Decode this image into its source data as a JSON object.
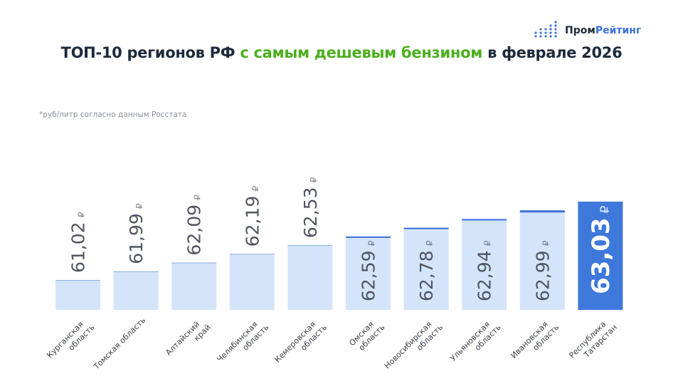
{
  "logo": {
    "part1": "Пром",
    "part2": "Рейтинг"
  },
  "title": {
    "part1": "ТОП-10 регионов РФ ",
    "highlight": "с самым дешевым бензином",
    "part2": " в феврале 2026"
  },
  "subtitle": "*руб/литр согласно данным Росстата",
  "colors": {
    "bar": "#d4e4fb",
    "bar_top_line": "#3b6fd9",
    "highlight_bar": "#3f78db",
    "highlight_text": "#4caf1e",
    "label": "#4f5561"
  },
  "chart_data": {
    "type": "bar",
    "title": "ТОП-10 регионов РФ с самым дешевым бензином в феврале 2026",
    "unit": "₽",
    "categories": [
      [
        "Курганская",
        "область"
      ],
      [
        "Томская область"
      ],
      [
        "Алтайский",
        "край"
      ],
      [
        "Челябинская",
        "область"
      ],
      [
        "Кемеровская",
        "область"
      ],
      [
        "Омская",
        "область"
      ],
      [
        "Новосибирская",
        "область"
      ],
      [
        "Ульяновская",
        "область"
      ],
      [
        "Ивановская",
        "область"
      ],
      [
        "Республика",
        "Татарстан"
      ]
    ],
    "values": [
      61.02,
      61.99,
      62.09,
      62.19,
      62.53,
      62.59,
      62.78,
      62.94,
      62.99,
      63.03
    ],
    "value_labels": [
      "61,02",
      "61,99",
      "62,09",
      "62,19",
      "62,53",
      "62,59",
      "62,78",
      "62,94",
      "62,99",
      "63,03"
    ],
    "highlighted_index": 9,
    "grid": false,
    "legend": "none",
    "ylim": [
      60.5,
      63.03
    ]
  }
}
